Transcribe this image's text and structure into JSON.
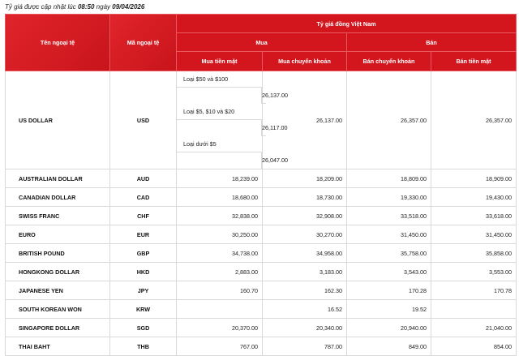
{
  "updated": {
    "prefix": "Tỷ giá được cập nhật lúc",
    "time": "08:50",
    "middle": "ngày",
    "date": "09/04/2026"
  },
  "headers": {
    "currency_name": "Tên ngoại tệ",
    "currency_code": "Mã ngoại tệ",
    "vnd_group": "Tỷ giá đồng Việt Nam",
    "buy": "Mua",
    "sell": "Bán",
    "buy_cash": "Mua tiền mặt",
    "buy_transfer": "Mua chuyển khoản",
    "sell_transfer": "Bán chuyển khoản",
    "sell_cash": "Bán tiền mặt"
  },
  "usd": {
    "name": "US DOLLAR",
    "code": "USD",
    "cash_tiers": [
      {
        "label": "Loại $50 và $100",
        "value": "26,137.00"
      },
      {
        "label": "Loại $5, $10 và $20",
        "value": "26,117.00"
      },
      {
        "label": "Loại dưới $5",
        "value": "26,047.00"
      }
    ],
    "buy_transfer": "26,137.00",
    "sell_transfer": "26,357.00",
    "sell_cash": "26,357.00"
  },
  "rows": [
    {
      "name": "AUSTRALIAN DOLLAR",
      "code": "AUD",
      "buy_cash": "18,239.00",
      "buy_transfer": "18,209.00",
      "sell_transfer": "18,809.00",
      "sell_cash": "18,909.00"
    },
    {
      "name": "CANADIAN DOLLAR",
      "code": "CAD",
      "buy_cash": "18,680.00",
      "buy_transfer": "18,730.00",
      "sell_transfer": "19,330.00",
      "sell_cash": "19,430.00"
    },
    {
      "name": "SWISS FRANC",
      "code": "CHF",
      "buy_cash": "32,838.00",
      "buy_transfer": "32,908.00",
      "sell_transfer": "33,518.00",
      "sell_cash": "33,618.00"
    },
    {
      "name": "EURO",
      "code": "EUR",
      "buy_cash": "30,250.00",
      "buy_transfer": "30,270.00",
      "sell_transfer": "31,450.00",
      "sell_cash": "31,450.00"
    },
    {
      "name": "BRITISH POUND",
      "code": "GBP",
      "buy_cash": "34,738.00",
      "buy_transfer": "34,958.00",
      "sell_transfer": "35,758.00",
      "sell_cash": "35,858.00"
    },
    {
      "name": "HONGKONG DOLLAR",
      "code": "HKD",
      "buy_cash": "2,883.00",
      "buy_transfer": "3,183.00",
      "sell_transfer": "3,543.00",
      "sell_cash": "3,553.00"
    },
    {
      "name": "JAPANESE YEN",
      "code": "JPY",
      "buy_cash": "160.70",
      "buy_transfer": "162.30",
      "sell_transfer": "170.28",
      "sell_cash": "170.78"
    },
    {
      "name": "SOUTH KOREAN WON",
      "code": "KRW",
      "buy_cash": "",
      "buy_transfer": "16.52",
      "sell_transfer": "19.52",
      "sell_cash": ""
    },
    {
      "name": "SINGAPORE DOLLAR",
      "code": "SGD",
      "buy_cash": "20,370.00",
      "buy_transfer": "20,340.00",
      "sell_transfer": "20,940.00",
      "sell_cash": "21,040.00"
    },
    {
      "name": "THAI BAHT",
      "code": "THB",
      "buy_cash": "767.00",
      "buy_transfer": "787.00",
      "sell_transfer": "849.00",
      "sell_cash": "854.00"
    }
  ]
}
